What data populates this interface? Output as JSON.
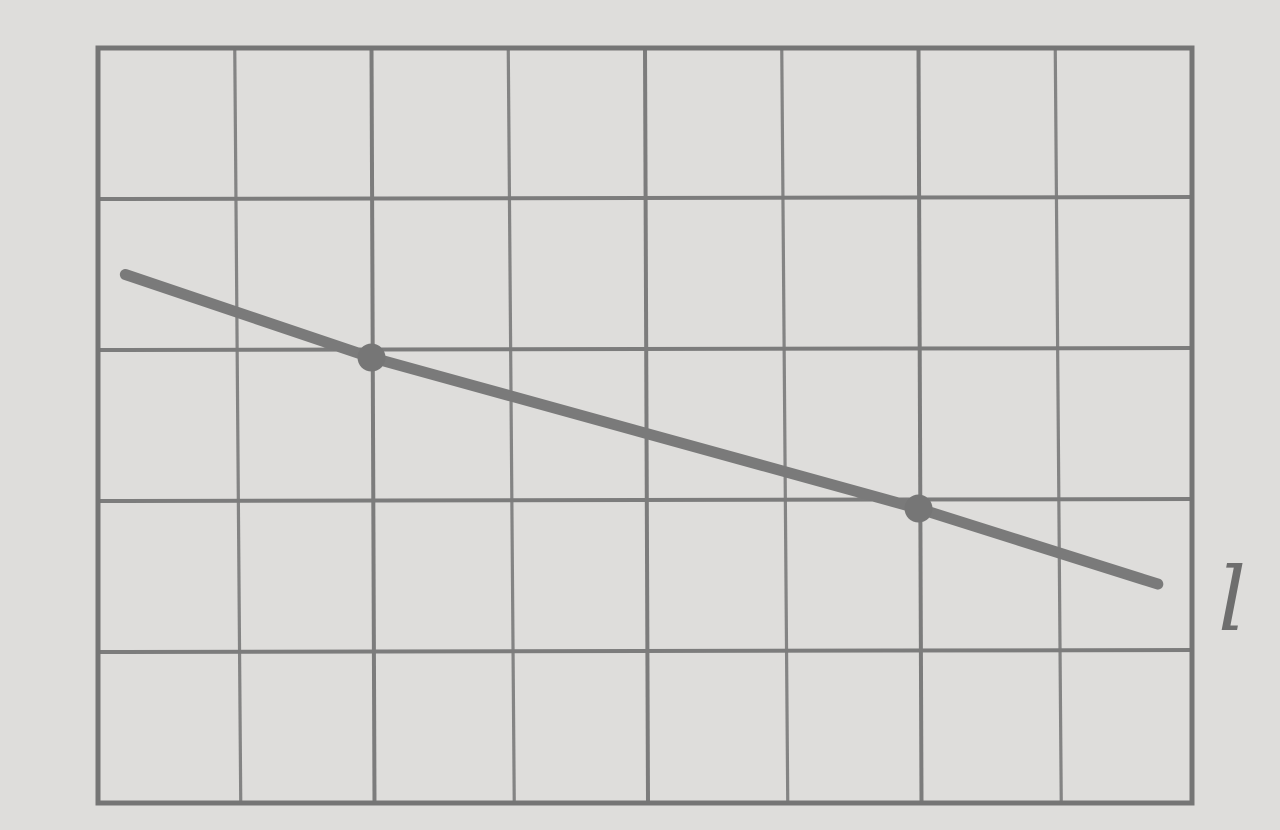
{
  "chart_data": {
    "type": "line",
    "title": "",
    "xlabel": "",
    "ylabel": "",
    "grid": true,
    "xlim": [
      0,
      8
    ],
    "ylim": [
      0,
      5
    ],
    "x_divisions": 8,
    "y_divisions": 5,
    "series": [
      {
        "label": "l",
        "x": [
          0.2,
          2,
          6,
          7.75
        ],
        "y": [
          3.5,
          2.95,
          1.95,
          1.45
        ],
        "markers": [
          false,
          true,
          true,
          false
        ]
      }
    ]
  }
}
